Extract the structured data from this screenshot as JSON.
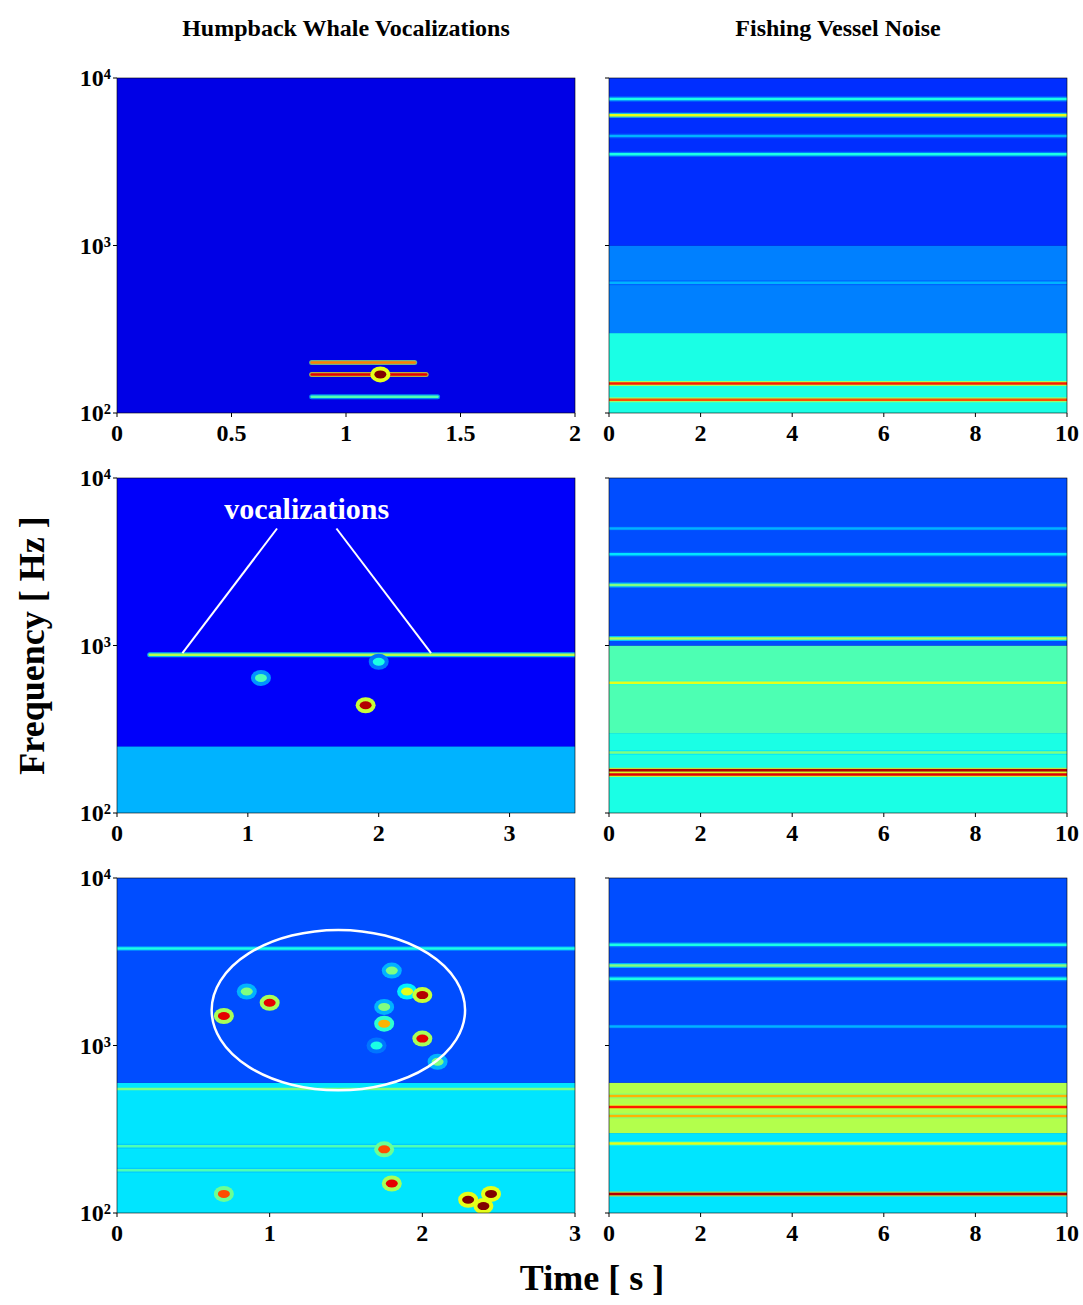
{
  "figure": {
    "column_titles": [
      "Humpback Whale Vocalizations",
      "Fishing Vessel Noise"
    ],
    "xlabel": "Time [ s ]",
    "ylabel": "Frequency [ Hz ]"
  },
  "chart_data": [
    {
      "type": "spectrogram",
      "log": "y",
      "xlim": [
        0,
        2
      ],
      "xticks": [
        0,
        0.5,
        1,
        1.5,
        2
      ],
      "ylim": [
        100,
        10000
      ],
      "yticks": [
        {
          "value": 100,
          "label": "10²"
        },
        {
          "value": 1000,
          "label": "10³"
        },
        {
          "value": 10000,
          "label": "10⁴"
        }
      ],
      "bands": [
        {
          "f0": 100,
          "f1": 10000,
          "level": 0.1
        }
      ],
      "tones": [
        {
          "f": 200,
          "t0": 0.85,
          "t1": 1.3,
          "level": 0.75
        },
        {
          "f": 170,
          "t0": 0.85,
          "t1": 1.35,
          "level": 0.9
        },
        {
          "f": 125,
          "t0": 0.85,
          "t1": 1.4,
          "level": 0.45
        }
      ],
      "spots": [
        {
          "t": 1.15,
          "f": 170,
          "level": 1
        }
      ]
    },
    {
      "type": "spectrogram",
      "log": "y",
      "tick_labels": "x",
      "xlim": [
        0,
        10
      ],
      "xticks": [
        0,
        2,
        4,
        6,
        8,
        10
      ],
      "ylim": [
        100,
        10000
      ],
      "yticks": [
        {
          "value": 100,
          "label": "10²"
        },
        {
          "value": 1000,
          "label": "10³"
        },
        {
          "value": 10000,
          "label": "10⁴"
        }
      ],
      "bands": [
        {
          "f0": 100,
          "f1": 300,
          "level": 0.4
        },
        {
          "f0": 300,
          "f1": 1000,
          "level": 0.25
        },
        {
          "f0": 1000,
          "f1": 10000,
          "level": 0.17
        }
      ],
      "tones": [
        {
          "f": 7500,
          "t0": 0,
          "t1": 10,
          "level": 0.4
        },
        {
          "f": 6000,
          "t0": 0,
          "t1": 10,
          "level": 0.6
        },
        {
          "f": 4500,
          "t0": 0,
          "t1": 10,
          "level": 0.3
        },
        {
          "f": 3500,
          "t0": 0,
          "t1": 10,
          "level": 0.4
        },
        {
          "f": 600,
          "t0": 0,
          "t1": 10,
          "level": 0.3
        },
        {
          "f": 150,
          "t0": 0,
          "t1": 10,
          "level": 0.85
        },
        {
          "f": 120,
          "t0": 0,
          "t1": 10,
          "level": 0.8
        }
      ],
      "spots": []
    },
    {
      "type": "spectrogram",
      "log": "y",
      "xlim": [
        0,
        3.5
      ],
      "xticks": [
        0,
        1,
        2,
        3
      ],
      "ylim": [
        100,
        10000
      ],
      "yticks": [
        {
          "value": 100,
          "label": "10²"
        },
        {
          "value": 1000,
          "label": "10³"
        },
        {
          "value": 10000,
          "label": "10⁴"
        }
      ],
      "bands": [
        {
          "f0": 100,
          "f1": 250,
          "level": 0.3
        },
        {
          "f0": 250,
          "f1": 10000,
          "level": 0.12
        }
      ],
      "tones": [
        {
          "f": 880,
          "t0": 0.25,
          "t1": 3.5,
          "level": 0.55
        }
      ],
      "spots": [
        {
          "t": 1.1,
          "f": 640,
          "level": 0.45
        },
        {
          "t": 1.9,
          "f": 440,
          "level": 0.95
        },
        {
          "t": 2.0,
          "f": 800,
          "level": 0.4
        }
      ],
      "annotations": [
        {
          "text": "vocalizations",
          "t": 1.45,
          "f": 6300,
          "targets": [
            {
              "t": 0.5,
              "f": 900
            },
            {
              "t": 2.4,
              "f": 900
            }
          ]
        }
      ]
    },
    {
      "type": "spectrogram",
      "log": "y",
      "tick_labels": "x",
      "xlim": [
        0,
        10
      ],
      "xticks": [
        0,
        2,
        4,
        6,
        8,
        10
      ],
      "ylim": [
        100,
        10000
      ],
      "yticks": [
        {
          "value": 100,
          "label": "10²"
        },
        {
          "value": 1000,
          "label": "10³"
        },
        {
          "value": 10000,
          "label": "10⁴"
        }
      ],
      "bands": [
        {
          "f0": 100,
          "f1": 300,
          "level": 0.4
        },
        {
          "f0": 300,
          "f1": 1000,
          "level": 0.45
        },
        {
          "f0": 1000,
          "f1": 10000,
          "level": 0.2
        }
      ],
      "tones": [
        {
          "f": 5000,
          "t0": 0,
          "t1": 10,
          "level": 0.3
        },
        {
          "f": 3500,
          "t0": 0,
          "t1": 10,
          "level": 0.35
        },
        {
          "f": 2300,
          "t0": 0,
          "t1": 10,
          "level": 0.5
        },
        {
          "f": 1100,
          "t0": 0,
          "t1": 10,
          "level": 0.55
        },
        {
          "f": 600,
          "t0": 0,
          "t1": 10,
          "level": 0.6
        },
        {
          "f": 230,
          "t0": 0,
          "t1": 10,
          "level": 0.5
        },
        {
          "f": 180,
          "t0": 0,
          "t1": 10,
          "level": 0.95
        },
        {
          "f": 170,
          "t0": 0,
          "t1": 10,
          "level": 0.9
        }
      ],
      "spots": []
    },
    {
      "type": "spectrogram",
      "log": "y",
      "xlim": [
        0,
        3
      ],
      "xticks": [
        0,
        1,
        2,
        3
      ],
      "ylim": [
        100,
        10000
      ],
      "yticks": [
        {
          "value": 100,
          "label": "10²"
        },
        {
          "value": 1000,
          "label": "10³"
        },
        {
          "value": 10000,
          "label": "10⁴"
        }
      ],
      "bands": [
        {
          "f0": 100,
          "f1": 600,
          "level": 0.35
        },
        {
          "f0": 600,
          "f1": 10000,
          "level": 0.2
        }
      ],
      "tones": [
        {
          "f": 3800,
          "t0": 0,
          "t1": 3,
          "level": 0.4
        },
        {
          "f": 550,
          "t0": 0,
          "t1": 3,
          "level": 0.5
        },
        {
          "f": 250,
          "t0": 0,
          "t1": 3,
          "level": 0.45
        },
        {
          "f": 180,
          "t0": 0,
          "t1": 3,
          "level": 0.45
        }
      ],
      "spots": [
        {
          "t": 0.7,
          "f": 1500,
          "level": 0.9
        },
        {
          "t": 0.85,
          "f": 2100,
          "level": 0.5
        },
        {
          "t": 1.0,
          "f": 1800,
          "level": 0.9
        },
        {
          "t": 1.8,
          "f": 2800,
          "level": 0.5
        },
        {
          "t": 1.9,
          "f": 2100,
          "level": 0.6
        },
        {
          "t": 2.0,
          "f": 2000,
          "level": 0.95
        },
        {
          "t": 1.75,
          "f": 1700,
          "level": 0.5
        },
        {
          "t": 1.75,
          "f": 1350,
          "level": 0.7
        },
        {
          "t": 2.0,
          "f": 1100,
          "level": 0.9
        },
        {
          "t": 2.1,
          "f": 800,
          "level": 0.5
        },
        {
          "t": 1.7,
          "f": 1000,
          "level": 0.4
        },
        {
          "t": 2.3,
          "f": 120,
          "level": 1
        },
        {
          "t": 2.45,
          "f": 130,
          "level": 1
        },
        {
          "t": 2.4,
          "f": 110,
          "level": 1
        },
        {
          "t": 1.8,
          "f": 150,
          "level": 0.9
        },
        {
          "t": 0.7,
          "f": 130,
          "level": 0.8
        },
        {
          "t": 1.75,
          "f": 240,
          "level": 0.8
        }
      ],
      "highlight": {
        "t0": 0.62,
        "t1": 2.28,
        "f0": 540,
        "f1": 4900
      }
    },
    {
      "type": "spectrogram",
      "log": "y",
      "tick_labels": "x",
      "xlim": [
        0,
        10
      ],
      "xticks": [
        0,
        2,
        4,
        6,
        8,
        10
      ],
      "ylim": [
        100,
        10000
      ],
      "yticks": [
        {
          "value": 100,
          "label": "10²"
        },
        {
          "value": 1000,
          "label": "10³"
        },
        {
          "value": 10000,
          "label": "10⁴"
        }
      ],
      "bands": [
        {
          "f0": 100,
          "f1": 300,
          "level": 0.35
        },
        {
          "f0": 300,
          "f1": 600,
          "level": 0.55
        },
        {
          "f0": 600,
          "f1": 10000,
          "level": 0.2
        }
      ],
      "tones": [
        {
          "f": 4000,
          "t0": 0,
          "t1": 10,
          "level": 0.4
        },
        {
          "f": 3000,
          "t0": 0,
          "t1": 10,
          "level": 0.5
        },
        {
          "f": 2500,
          "t0": 0,
          "t1": 10,
          "level": 0.4
        },
        {
          "f": 1300,
          "t0": 0,
          "t1": 10,
          "level": 0.3
        },
        {
          "f": 500,
          "t0": 0,
          "t1": 10,
          "level": 0.7
        },
        {
          "f": 430,
          "t0": 0,
          "t1": 10,
          "level": 0.85
        },
        {
          "f": 380,
          "t0": 0,
          "t1": 10,
          "level": 0.7
        },
        {
          "f": 260,
          "t0": 0,
          "t1": 10,
          "level": 0.6
        },
        {
          "f": 130,
          "t0": 0,
          "t1": 10,
          "level": 0.95
        }
      ],
      "spots": []
    }
  ]
}
